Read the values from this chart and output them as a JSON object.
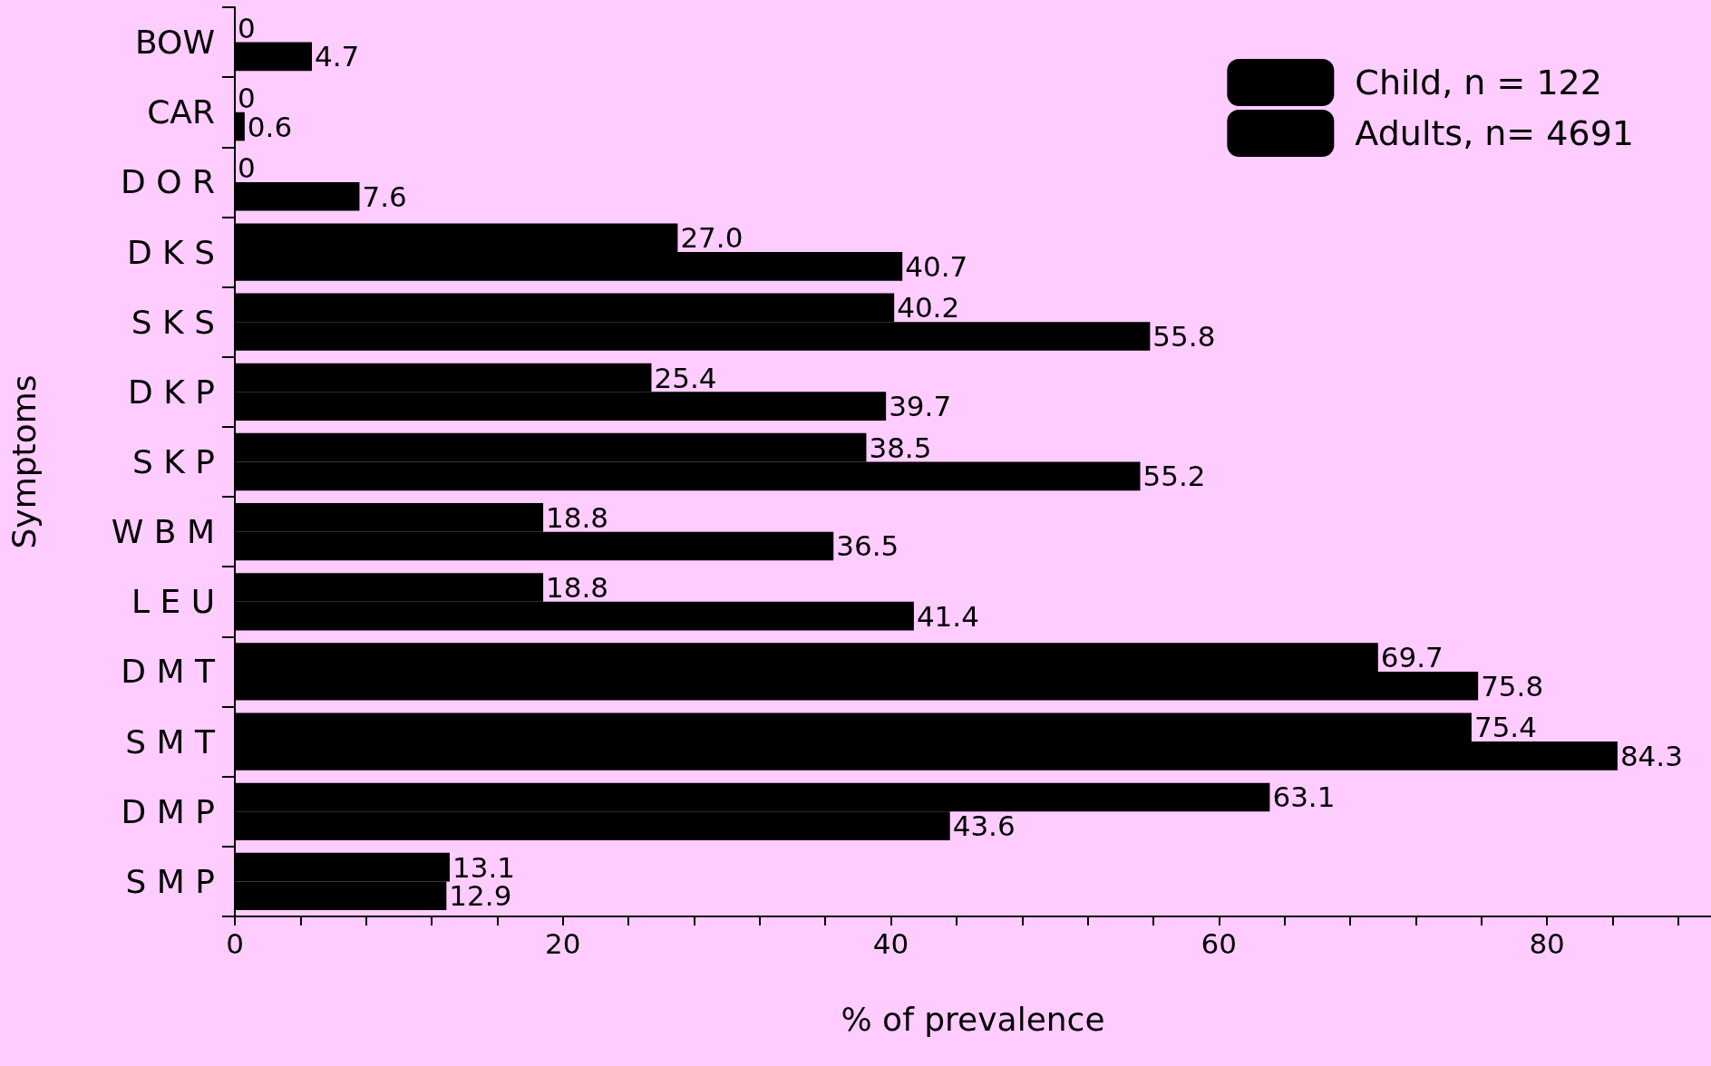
{
  "chart_data": {
    "type": "bar",
    "orientation": "horizontal",
    "xlabel": "% of prevalence",
    "ylabel": "Symptoms",
    "categories": [
      "BOW",
      "CAR",
      "D O R",
      "D K S",
      "S K S",
      "D K P",
      "S K P",
      "W B M",
      "L E U",
      "D M T",
      "S M T",
      "D M P",
      "S M P"
    ],
    "series": [
      {
        "name": "Child, n = 122",
        "color": "#000000",
        "values": [
          0,
          0,
          0,
          27.0,
          40.2,
          25.4,
          38.5,
          18.8,
          18.8,
          69.7,
          75.4,
          63.1,
          13.1
        ],
        "value_labels": [
          "0",
          "0",
          "0",
          "27.0",
          "40.2",
          "25.4",
          "38.5",
          "18.8",
          "18.8",
          "69.7",
          "75.4",
          "63.1",
          "13.1"
        ]
      },
      {
        "name": "Adults, n= 4691",
        "color": "#000000",
        "values": [
          4.7,
          0.6,
          7.6,
          40.7,
          55.8,
          39.7,
          55.2,
          36.5,
          41.4,
          75.8,
          84.3,
          43.6,
          12.9
        ],
        "value_labels": [
          "4.7",
          "0.6",
          "7.6",
          "40.7",
          "55.8",
          "39.7",
          "55.2",
          "36.5",
          "41.4",
          "75.8",
          "84.3",
          "43.6",
          "12.9"
        ]
      }
    ],
    "xlim": [
      0,
      90
    ],
    "xticks": [
      0,
      {
        "value": 4,
        "label": null
      },
      {
        "value": 8,
        "label": null
      },
      {
        "value": 12,
        "label": null
      },
      {
        "value": 16,
        "label": null
      },
      20,
      {
        "value": 24,
        "label": null
      },
      {
        "value": 28,
        "label": null
      },
      {
        "value": 32,
        "label": null
      },
      {
        "value": 36,
        "label": null
      },
      40,
      {
        "value": 44,
        "label": null
      },
      {
        "value": 48,
        "label": null
      },
      {
        "value": 52,
        "label": null
      },
      {
        "value": 56,
        "label": null
      },
      60,
      {
        "value": 64,
        "label": null
      },
      {
        "value": 68,
        "label": null
      },
      {
        "value": 72,
        "label": null
      },
      {
        "value": 76,
        "label": null
      },
      80,
      {
        "value": 84,
        "label": null
      },
      {
        "value": 88,
        "label": null
      }
    ],
    "legend": "top right",
    "grid": false
  }
}
